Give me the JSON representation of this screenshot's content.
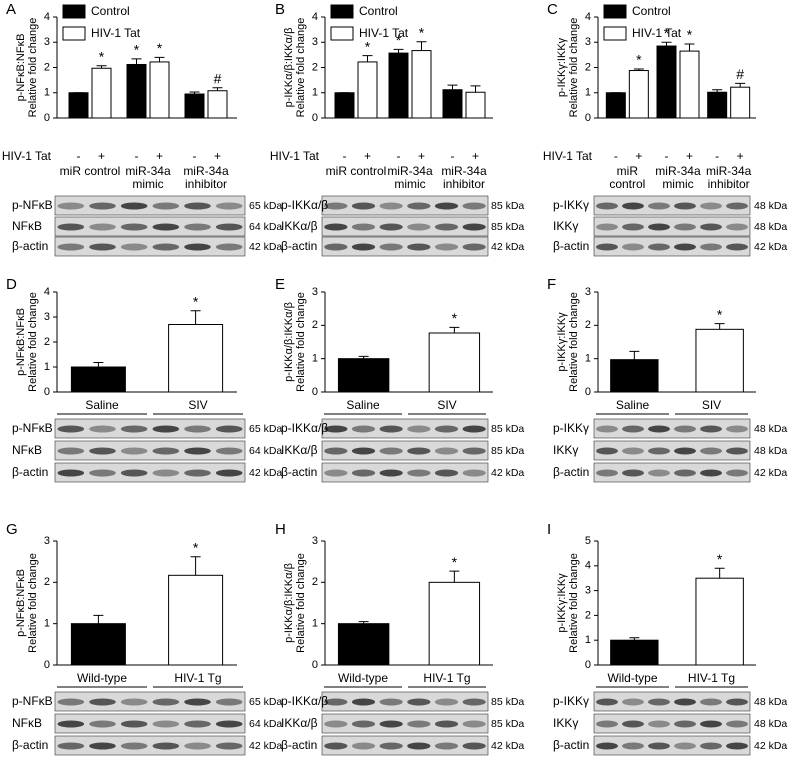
{
  "chart_data": [
    {
      "type": "grouped-bar",
      "panel": "A",
      "ylabel": "p-NFκB:NFκB",
      "ylabel2": "Relative fold change",
      "ylim": [
        0,
        4
      ],
      "yticks": [
        0,
        1,
        2,
        3,
        4
      ],
      "categories": [
        "miR control",
        "miR-34a mimic",
        "miR-34a inhibitor"
      ],
      "series": [
        {
          "name": "Control",
          "color": "#000000",
          "values": [
            1,
            2.12,
            0.95
          ],
          "errors": [
            0,
            0.22,
            0.08
          ],
          "annotations": [
            null,
            "*",
            null
          ]
        },
        {
          "name": "HIV-1 Tat",
          "color": "#ffffff",
          "values": [
            1.97,
            2.22,
            1.08
          ],
          "errors": [
            0.1,
            0.18,
            0.12
          ],
          "annotations": [
            "*",
            "*",
            "#"
          ]
        }
      ],
      "treatment_label": "HIV-1 Tat",
      "treatment_marks": [
        "-",
        "+",
        "-",
        "+",
        "-",
        "+"
      ],
      "blots": [
        {
          "label": "p-NFκB",
          "size": "65 kDa"
        },
        {
          "label": "NFκB",
          "size": "64 kDa"
        },
        {
          "label": "β-actin",
          "size": "42 kDa"
        }
      ]
    },
    {
      "type": "grouped-bar",
      "panel": "B",
      "ylabel": "p-IKKα/β:IKKα/β",
      "ylabel2": "Relative fold change",
      "ylim": [
        0,
        4
      ],
      "yticks": [
        0,
        1,
        2,
        3,
        4
      ],
      "categories": [
        "miR control",
        "miR-34a mimic",
        "miR-34a inhibitor"
      ],
      "series": [
        {
          "name": "Control",
          "color": "#000000",
          "values": [
            1,
            2.57,
            1.12
          ],
          "errors": [
            0,
            0.15,
            0.18
          ],
          "annotations": [
            null,
            "*",
            null
          ]
        },
        {
          "name": "HIV-1 Tat",
          "color": "#ffffff",
          "values": [
            2.22,
            2.67,
            1.02
          ],
          "errors": [
            0.25,
            0.35,
            0.25
          ],
          "annotations": [
            "*",
            "*",
            null
          ]
        }
      ],
      "treatment_label": "HIV-1 Tat",
      "treatment_marks": [
        "-",
        "+",
        "-",
        "+",
        "-",
        "+"
      ],
      "blots": [
        {
          "label": "p-IKKα/β",
          "size": "85 kDa"
        },
        {
          "label": "IKKα/β",
          "size": "85 kDa"
        },
        {
          "label": "β-actin",
          "size": "42 kDa"
        }
      ]
    },
    {
      "type": "grouped-bar",
      "panel": "C",
      "ylabel": "p-IKKγ:IKKγ",
      "ylabel2": "Relative fold change",
      "ylim": [
        0,
        4
      ],
      "yticks": [
        0,
        1,
        2,
        3,
        4
      ],
      "categories": [
        "miR control",
        "miR-34a mimic",
        "miR-34a inhibitor"
      ],
      "series": [
        {
          "name": "Control",
          "color": "#000000",
          "values": [
            1,
            2.85,
            1.02
          ],
          "errors": [
            0,
            0.15,
            0.1
          ],
          "annotations": [
            null,
            "*",
            null
          ]
        },
        {
          "name": "HIV-1 Tat",
          "color": "#ffffff",
          "values": [
            1.88,
            2.65,
            1.22
          ],
          "errors": [
            0.06,
            0.28,
            0.15
          ],
          "annotations": [
            "*",
            "*",
            "#"
          ]
        }
      ],
      "treatment_label": "HIV-1 Tat",
      "treatment_marks": [
        "-",
        "+",
        "-",
        "+",
        "-",
        "+"
      ],
      "blots": [
        {
          "label": "p-IKKγ",
          "size": "48 kDa"
        },
        {
          "label": "IKKγ",
          "size": "48 kDa"
        },
        {
          "label": "β-actin",
          "size": "42 kDa"
        }
      ]
    },
    {
      "type": "bar",
      "panel": "D",
      "ylabel": "p-NFκB:NFκB",
      "ylabel2": "Relative fold change",
      "ylim": [
        0,
        4
      ],
      "yticks": [
        0,
        1,
        2,
        3,
        4
      ],
      "categories": [
        "Saline",
        "SIV"
      ],
      "values": [
        1,
        2.7
      ],
      "errors": [
        0.18,
        0.55
      ],
      "colors": [
        "#000000",
        "#ffffff"
      ],
      "annotations": [
        null,
        "*"
      ],
      "blots": [
        {
          "label": "p-NFκB",
          "size": "65 kDa"
        },
        {
          "label": "NFκB",
          "size": "64 kDa"
        },
        {
          "label": "β-actin",
          "size": "42 kDa"
        }
      ]
    },
    {
      "type": "bar",
      "panel": "E",
      "ylabel": "p-IKKα/β:IKKα/β",
      "ylabel2": "Relative fold change",
      "ylim": [
        0,
        3
      ],
      "yticks": [
        0,
        1,
        2,
        3
      ],
      "categories": [
        "Saline",
        "SIV"
      ],
      "values": [
        1,
        1.77
      ],
      "errors": [
        0.07,
        0.17
      ],
      "colors": [
        "#000000",
        "#ffffff"
      ],
      "annotations": [
        null,
        "*"
      ],
      "blots": [
        {
          "label": "p-IKKα/β",
          "size": "85 kDa"
        },
        {
          "label": "IKKα/β",
          "size": "85 kDa"
        },
        {
          "label": "β-actin",
          "size": "42 kDa"
        }
      ]
    },
    {
      "type": "bar",
      "panel": "F",
      "ylabel": "p-IKKγ:IKKγ",
      "ylabel2": "Relative fold change",
      "ylim": [
        0,
        3
      ],
      "yticks": [
        0,
        1,
        2,
        3
      ],
      "categories": [
        "Saline",
        "SIV"
      ],
      "values": [
        0.97,
        1.88
      ],
      "errors": [
        0.25,
        0.17
      ],
      "colors": [
        "#000000",
        "#ffffff"
      ],
      "annotations": [
        null,
        "*"
      ],
      "blots": [
        {
          "label": "p-IKKγ",
          "size": "48 kDa"
        },
        {
          "label": "IKKγ",
          "size": "48 kDa"
        },
        {
          "label": "β-actin",
          "size": "42 kDa"
        }
      ]
    },
    {
      "type": "bar",
      "panel": "G",
      "ylabel": "p-NFκB:NFκB",
      "ylabel2": "Relative fold change",
      "ylim": [
        0,
        3
      ],
      "yticks": [
        0,
        1,
        2,
        3
      ],
      "categories": [
        "Wild-type",
        "HIV-1 Tg"
      ],
      "values": [
        1,
        2.17
      ],
      "errors": [
        0.2,
        0.45
      ],
      "colors": [
        "#000000",
        "#ffffff"
      ],
      "annotations": [
        null,
        "*"
      ],
      "blots": [
        {
          "label": "p-NFκB",
          "size": "65 kDa"
        },
        {
          "label": "NFκB",
          "size": "64 kDa"
        },
        {
          "label": "β-actin",
          "size": "42 kDa"
        }
      ]
    },
    {
      "type": "bar",
      "panel": "H",
      "ylabel": "p-IKKα/β:IKKα/β",
      "ylabel2": "Relative fold change",
      "ylim": [
        0,
        3
      ],
      "yticks": [
        0,
        1,
        2,
        3
      ],
      "categories": [
        "Wild-type",
        "HIV-1 Tg"
      ],
      "values": [
        1,
        2.0
      ],
      "errors": [
        0.05,
        0.27
      ],
      "colors": [
        "#000000",
        "#ffffff"
      ],
      "annotations": [
        null,
        "*"
      ],
      "blots": [
        {
          "label": "p-IKKα/β",
          "size": "85 kDa"
        },
        {
          "label": "IKKα/β",
          "size": "85 kDa"
        },
        {
          "label": "β-actin",
          "size": "42 kDa"
        }
      ]
    },
    {
      "type": "bar",
      "panel": "I",
      "ylabel": "p-IKKγ:IKKγ",
      "ylabel2": "Relative fold change",
      "ylim": [
        0,
        5
      ],
      "yticks": [
        0,
        1,
        2,
        3,
        4,
        5
      ],
      "categories": [
        "Wild-type",
        "HIV-1 Tg"
      ],
      "values": [
        1,
        3.5
      ],
      "errors": [
        0.1,
        0.4
      ],
      "colors": [
        "#000000",
        "#ffffff"
      ],
      "annotations": [
        null,
        "*"
      ],
      "blots": [
        {
          "label": "p-IKKγ",
          "size": "48 kDa"
        },
        {
          "label": "IKKγ",
          "size": "48 kDa"
        },
        {
          "label": "β-actin",
          "size": "42 kDa"
        }
      ]
    }
  ]
}
